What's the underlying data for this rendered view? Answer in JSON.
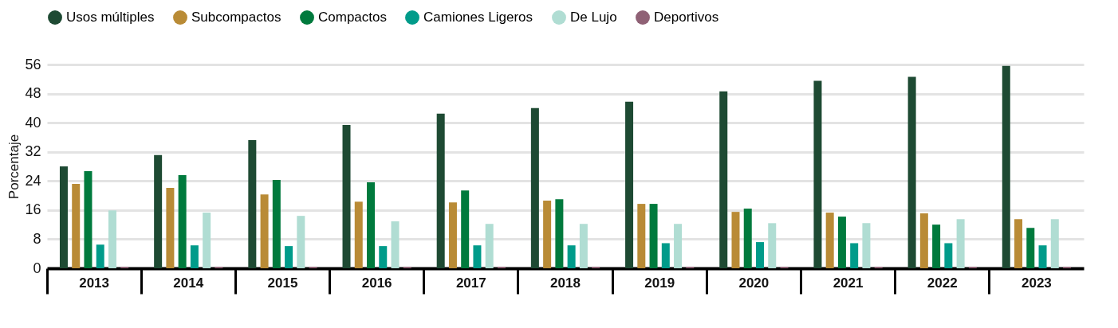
{
  "chart_data": {
    "type": "bar",
    "ylabel": "Porcentaje",
    "categories": [
      "2013",
      "2014",
      "2015",
      "2016",
      "2017",
      "2018",
      "2019",
      "2020",
      "2021",
      "2022",
      "2023"
    ],
    "series": [
      {
        "name": "Usos múltiples",
        "color": "#1e4a33",
        "values": [
          28.0,
          31.1,
          35.2,
          39.4,
          42.5,
          44.0,
          45.8,
          48.6,
          51.5,
          52.6,
          55.6
        ]
      },
      {
        "name": "Subcompactos",
        "color": "#b98b36",
        "values": [
          23.2,
          22.1,
          20.3,
          18.3,
          18.1,
          18.6,
          17.7,
          15.5,
          15.3,
          15.1,
          13.5
        ]
      },
      {
        "name": "Compactos",
        "color": "#007a3d",
        "values": [
          26.7,
          25.6,
          24.3,
          23.6,
          21.4,
          19.0,
          17.7,
          16.4,
          14.2,
          12.0,
          11.1
        ]
      },
      {
        "name": "Camiones Ligeros",
        "color": "#009b8a",
        "values": [
          6.5,
          6.3,
          6.1,
          6.1,
          6.3,
          6.3,
          6.9,
          7.2,
          6.9,
          6.9,
          6.3
        ]
      },
      {
        "name": "De Lujo",
        "color": "#b0ddd3",
        "values": [
          15.9,
          15.3,
          14.4,
          12.9,
          12.2,
          12.2,
          12.2,
          12.4,
          12.4,
          13.5,
          13.5
        ]
      },
      {
        "name": "Deportivos",
        "color": "#8f6175",
        "values": [
          0.4,
          0.4,
          0.4,
          0.4,
          0.4,
          0.4,
          0.4,
          0.4,
          0.4,
          0.4,
          0.4
        ]
      }
    ],
    "ylim": [
      0,
      56
    ],
    "yticks": [
      0,
      8,
      16,
      24,
      32,
      40,
      48,
      56
    ],
    "grid": "y",
    "legend": "top"
  }
}
